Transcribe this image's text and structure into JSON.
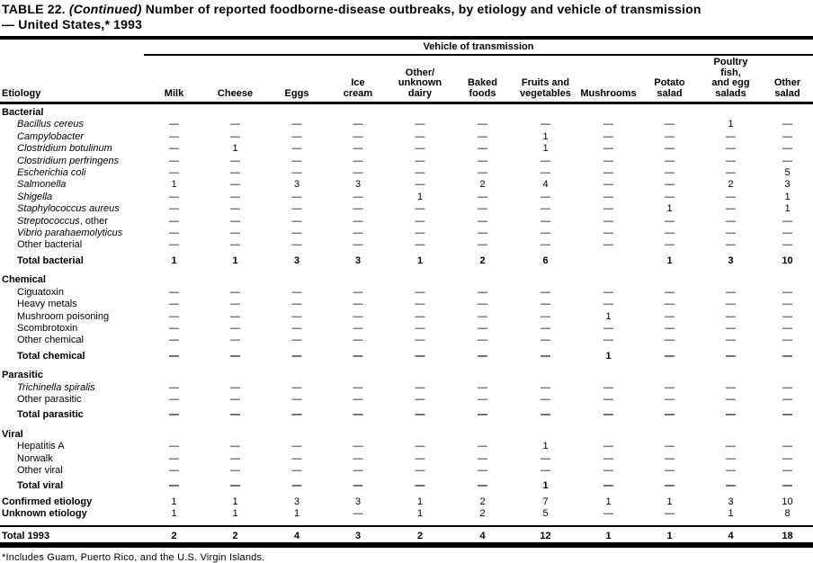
{
  "title": {
    "table_no": "TABLE 22.",
    "continued": "(Continued)",
    "line1_rest": "Number of reported foodborne-disease outbreaks, by etiology and vehicle of transmission",
    "line2": "— United States,* 1993"
  },
  "table": {
    "group_header": "Vehicle of transmission",
    "etiology_header": "Etiology",
    "columns": [
      [
        "Milk"
      ],
      [
        "Cheese"
      ],
      [
        "Eggs"
      ],
      [
        "Ice",
        "cream"
      ],
      [
        "Other/",
        "unknown",
        "dairy"
      ],
      [
        "Baked",
        "foods"
      ],
      [
        "Fruits and",
        "vegetables"
      ],
      [
        "Mushrooms"
      ],
      [
        "Potato",
        "salad"
      ],
      [
        "Poultry",
        "fish,",
        "and egg",
        "salads"
      ],
      [
        "Other",
        "salad"
      ]
    ],
    "rows": [
      {
        "type": "section",
        "label": "Bacterial",
        "cells": []
      },
      {
        "type": "item",
        "italic": true,
        "label": "Bacillus cereus",
        "cells": [
          "—",
          "—",
          "—",
          "—",
          "—",
          "—",
          "—",
          "—",
          "—",
          "1",
          "—"
        ]
      },
      {
        "type": "item",
        "italic": true,
        "label": "Campylobacter",
        "cells": [
          "—",
          "—",
          "—",
          "—",
          "—",
          "—",
          "1",
          "—",
          "—",
          "—",
          "—"
        ]
      },
      {
        "type": "item",
        "italic": true,
        "label": "Clostridium botulinum",
        "cells": [
          "—",
          "1",
          "—",
          "—",
          "—",
          "—",
          "1",
          "—",
          "—",
          "—",
          "—"
        ]
      },
      {
        "type": "item",
        "italic": true,
        "label": "Clostridium perfringens",
        "cells": [
          "—",
          "—",
          "—",
          "—",
          "—",
          "—",
          "—",
          "—",
          "—",
          "—",
          "—"
        ]
      },
      {
        "type": "item",
        "italic": true,
        "label": "Escherichia coli",
        "cells": [
          "—",
          "—",
          "—",
          "—",
          "—",
          "—",
          "—",
          "—",
          "—",
          "—",
          "5"
        ]
      },
      {
        "type": "item",
        "italic": true,
        "label": "Salmonella",
        "cells": [
          "1",
          "—",
          "3",
          "3",
          "—",
          "2",
          "4",
          "—",
          "—",
          "2",
          "3"
        ]
      },
      {
        "type": "item",
        "italic": true,
        "label": "Shigella",
        "cells": [
          "—",
          "—",
          "—",
          "—",
          "1",
          "—",
          "—",
          "—",
          "—",
          "—",
          "1"
        ]
      },
      {
        "type": "item",
        "italic": true,
        "label": "Staphylococcus aureus",
        "cells": [
          "—",
          "—",
          "—",
          "—",
          "—",
          "—",
          "—",
          "—",
          "1",
          "—",
          "1"
        ]
      },
      {
        "type": "item",
        "italic": true,
        "label": "Streptococcus",
        "label_suffix": ", other",
        "cells": [
          "—",
          "—",
          "—",
          "—",
          "—",
          "—",
          "—",
          "—",
          "—",
          "—",
          "—"
        ]
      },
      {
        "type": "item",
        "italic": true,
        "label": "Vibrio parahaemolyticus",
        "cells": [
          "—",
          "—",
          "—",
          "—",
          "—",
          "—",
          "—",
          "—",
          "—",
          "—",
          "—"
        ]
      },
      {
        "type": "item",
        "italic": false,
        "label": "Other bacterial",
        "cells": [
          "—",
          "—",
          "—",
          "—",
          "—",
          "—",
          "—",
          "—",
          "—",
          "—",
          "—"
        ]
      },
      {
        "type": "total",
        "italic": false,
        "label": "Total bacterial",
        "cells": [
          "1",
          "1",
          "3",
          "3",
          "1",
          "2",
          "6",
          "",
          "1",
          "3",
          "10"
        ]
      },
      {
        "type": "section",
        "label": "Chemical",
        "cells": []
      },
      {
        "type": "item",
        "italic": false,
        "label": "Ciguatoxin",
        "cells": [
          "—",
          "—",
          "—",
          "—",
          "—",
          "—",
          "—",
          "—",
          "—",
          "—",
          "—"
        ]
      },
      {
        "type": "item",
        "italic": false,
        "label": "Heavy metals",
        "cells": [
          "—",
          "—",
          "—",
          "—",
          "—",
          "—",
          "—",
          "—",
          "—",
          "—",
          "—"
        ]
      },
      {
        "type": "item",
        "italic": false,
        "label": "Mushroom poisoning",
        "cells": [
          "—",
          "—",
          "—",
          "—",
          "—",
          "—",
          "—",
          "1",
          "—",
          "—",
          "—"
        ]
      },
      {
        "type": "item",
        "italic": false,
        "label": "Scombrotoxin",
        "cells": [
          "—",
          "—",
          "—",
          "—",
          "—",
          "—",
          "—",
          "—",
          "—",
          "—",
          "—"
        ]
      },
      {
        "type": "item",
        "italic": false,
        "label": "Other chemical",
        "cells": [
          "—",
          "—",
          "—",
          "—",
          "—",
          "—",
          "—",
          "—",
          "—",
          "—",
          "—"
        ]
      },
      {
        "type": "total",
        "italic": false,
        "label": "Total chemical",
        "cells": [
          "—",
          "—",
          "—",
          "—",
          "—",
          "—",
          "—",
          "1",
          "—",
          "—",
          "—"
        ]
      },
      {
        "type": "section",
        "label": "Parasitic",
        "cells": []
      },
      {
        "type": "item",
        "italic": true,
        "label": "Trichinella spiralis",
        "cells": [
          "—",
          "—",
          "—",
          "—",
          "—",
          "—",
          "—",
          "—",
          "—",
          "—",
          "—"
        ]
      },
      {
        "type": "item",
        "italic": false,
        "label": "Other parasitic",
        "cells": [
          "—",
          "—",
          "—",
          "—",
          "—",
          "—",
          "—",
          "—",
          "—",
          "—",
          "—"
        ]
      },
      {
        "type": "total",
        "italic": false,
        "label": "Total parasitic",
        "cells": [
          "—",
          "—",
          "—",
          "—",
          "—",
          "—",
          "—",
          "—",
          "—",
          "—",
          "—"
        ]
      },
      {
        "type": "section",
        "label": "Viral",
        "cells": []
      },
      {
        "type": "item",
        "italic": false,
        "label": "Hepatitis A",
        "cells": [
          "—",
          "—",
          "—",
          "—",
          "—",
          "—",
          "1",
          "—",
          "—",
          "—",
          "—"
        ]
      },
      {
        "type": "item",
        "italic": false,
        "label": "Norwalk",
        "cells": [
          "—",
          "—",
          "—",
          "—",
          "—",
          "—",
          "—",
          "—",
          "—",
          "—",
          "—"
        ]
      },
      {
        "type": "item",
        "italic": false,
        "label": "Other viral",
        "cells": [
          "—",
          "—",
          "—",
          "—",
          "—",
          "—",
          "—",
          "—",
          "—",
          "—",
          "—"
        ]
      },
      {
        "type": "total",
        "italic": false,
        "label": "Total viral",
        "cells": [
          "—",
          "—",
          "—",
          "—",
          "—",
          "—",
          "1",
          "—",
          "—",
          "—",
          "—"
        ]
      },
      {
        "type": "summary",
        "italic": false,
        "label": "Confirmed etiology",
        "cells": [
          "1",
          "1",
          "3",
          "3",
          "1",
          "2",
          "7",
          "1",
          "1",
          "3",
          "10"
        ]
      },
      {
        "type": "summary",
        "italic": false,
        "label": "Unknown etiology",
        "cells": [
          "1",
          "1",
          "1",
          "—",
          "1",
          "2",
          "5",
          "—",
          "—",
          "1",
          "8"
        ]
      },
      {
        "type": "grand",
        "italic": false,
        "label": "Total 1993",
        "cells": [
          "2",
          "2",
          "4",
          "3",
          "2",
          "4",
          "12",
          "1",
          "1",
          "4",
          "18"
        ]
      }
    ]
  },
  "footnote": "*Includes Guam, Puerto Rico, and the U.S. Virgin Islands."
}
